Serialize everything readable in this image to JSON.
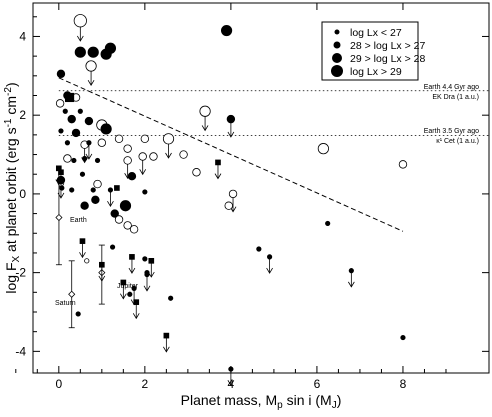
{
  "chart_data": {
    "type": "scatter",
    "title": "",
    "xlabel": "Planet mass, M_p sin i (M_J)",
    "ylabel": "log F_X at planet orbit (erg s^-1 cm^-2)",
    "xlim": [
      -0.6,
      10.0
    ],
    "ylim": [
      -4.55,
      4.85
    ],
    "x_ticks": [
      0,
      2,
      4,
      6,
      8
    ],
    "y_ticks": [
      -4,
      -2,
      0,
      2,
      4
    ],
    "grid": false,
    "legend_position": "top-right",
    "legend": [
      {
        "label": "log Lx < 27",
        "size": 1
      },
      {
        "label": "28 > log Lx > 27",
        "size": 2
      },
      {
        "label": "29 > log Lx > 28",
        "size": 3
      },
      {
        "label": "log Lx > 29",
        "size": 4
      }
    ],
    "reference_lines": [
      {
        "y": 2.62,
        "label1": "Earth 4.4 Gyr ago",
        "label2": "EK Dra (1 a.u.)"
      },
      {
        "y": 1.48,
        "label1": "Earth 3.5 Gyr ago",
        "label2": "κ¹ Cet (1 a.u.)"
      }
    ],
    "trend_line": {
      "x": [
        0.0,
        8.0
      ],
      "y": [
        2.95,
        -0.95
      ]
    },
    "solar_system": [
      {
        "name": "Earth",
        "x": 0.003,
        "y": -0.6,
        "err_low": -1.8,
        "err_high": 0.35
      },
      {
        "name": "Jupiter",
        "x": 1.0,
        "y": -2.0,
        "err_low": -2.8,
        "err_high": -1.3
      },
      {
        "name": "Saturn",
        "x": 0.3,
        "y": -2.55,
        "err_low": -3.4,
        "err_high": -1.7
      }
    ],
    "points": [
      {
        "x": 0.5,
        "y": 4.4,
        "size": 4,
        "filled": false,
        "limit": true
      },
      {
        "x": 0.5,
        "y": 3.6,
        "size": 3,
        "filled": true,
        "limit": false
      },
      {
        "x": 0.8,
        "y": 3.6,
        "size": 3,
        "filled": true,
        "limit": false
      },
      {
        "x": 1.1,
        "y": 3.55,
        "size": 3,
        "filled": true,
        "limit": false
      },
      {
        "x": 1.2,
        "y": 3.7,
        "size": 3,
        "filled": true,
        "limit": false
      },
      {
        "x": 0.75,
        "y": 3.25,
        "size": 3,
        "filled": false,
        "limit": true
      },
      {
        "x": 3.9,
        "y": 4.15,
        "size": 3,
        "filled": true,
        "limit": false
      },
      {
        "x": 0.05,
        "y": 3.05,
        "size": 2,
        "filled": true,
        "limit": false
      },
      {
        "x": 0.2,
        "y": 2.5,
        "size": 2,
        "filled": true,
        "limit": false
      },
      {
        "x": 0.03,
        "y": 2.3,
        "size": 2,
        "filled": false,
        "limit": false
      },
      {
        "x": 0.4,
        "y": 2.45,
        "size": 2,
        "filled": false,
        "limit": false
      },
      {
        "x": 0.15,
        "y": 2.1,
        "size": 1,
        "filled": true,
        "limit": false
      },
      {
        "x": 0.3,
        "y": 1.9,
        "size": 2,
        "filled": true,
        "limit": false
      },
      {
        "x": 0.5,
        "y": 2.1,
        "size": 1,
        "filled": true,
        "limit": false
      },
      {
        "x": 0.05,
        "y": 1.6,
        "size": 1,
        "filled": true,
        "limit": false
      },
      {
        "x": 0.2,
        "y": 1.3,
        "size": 1,
        "filled": true,
        "limit": false
      },
      {
        "x": 0.7,
        "y": 1.85,
        "size": 2,
        "filled": true,
        "limit": false
      },
      {
        "x": 1.0,
        "y": 1.75,
        "size": 3,
        "filled": false,
        "limit": false
      },
      {
        "x": 1.1,
        "y": 1.65,
        "size": 3,
        "filled": true,
        "limit": false
      },
      {
        "x": 0.4,
        "y": 1.55,
        "size": 2,
        "filled": true,
        "limit": false
      },
      {
        "x": 0.6,
        "y": 1.25,
        "size": 2,
        "filled": false,
        "limit": true
      },
      {
        "x": 0.7,
        "y": 1.3,
        "size": 1,
        "filled": true,
        "limit": true
      },
      {
        "x": 1.0,
        "y": 1.3,
        "size": 2,
        "filled": false,
        "limit": false
      },
      {
        "x": 1.4,
        "y": 1.4,
        "size": 2,
        "filled": false,
        "limit": false
      },
      {
        "x": 1.6,
        "y": 1.15,
        "size": 2,
        "filled": false,
        "limit": false
      },
      {
        "x": 2.0,
        "y": 1.4,
        "size": 2,
        "filled": false,
        "limit": false
      },
      {
        "x": 0.2,
        "y": 0.9,
        "size": 2,
        "filled": false,
        "limit": false
      },
      {
        "x": 0.35,
        "y": 0.85,
        "size": 1,
        "filled": true,
        "limit": false
      },
      {
        "x": 0.6,
        "y": 0.9,
        "size": 1,
        "filled": true,
        "limit": false
      },
      {
        "x": 0.9,
        "y": 0.85,
        "size": 1,
        "filled": true,
        "limit": false
      },
      {
        "x": 0.55,
        "y": 0.5,
        "size": 1,
        "filled": true,
        "limit": false
      },
      {
        "x": 1.6,
        "y": 0.85,
        "size": 2,
        "filled": false,
        "limit": true
      },
      {
        "x": 1.95,
        "y": 0.95,
        "size": 2,
        "filled": false,
        "limit": true
      },
      {
        "x": 2.2,
        "y": 0.95,
        "size": 2,
        "filled": false,
        "limit": false
      },
      {
        "x": 2.55,
        "y": 1.4,
        "size": 3,
        "filled": false,
        "limit": true
      },
      {
        "x": 2.9,
        "y": 1.0,
        "size": 2,
        "filled": false,
        "limit": false
      },
      {
        "x": 3.2,
        "y": 0.55,
        "size": 2,
        "filled": false,
        "limit": false
      },
      {
        "x": 3.4,
        "y": 2.1,
        "size": 3,
        "filled": false,
        "limit": true
      },
      {
        "x": 4.0,
        "y": 1.9,
        "size": 2,
        "filled": true,
        "limit": true
      },
      {
        "x": 3.7,
        "y": 0.8,
        "size": 1,
        "filled": true,
        "limit": true,
        "marker": "square"
      },
      {
        "x": 4.05,
        "y": 0.0,
        "size": 2,
        "filled": false,
        "limit": true
      },
      {
        "x": 3.95,
        "y": -0.3,
        "size": 2,
        "filled": false,
        "limit": false
      },
      {
        "x": 6.15,
        "y": 1.15,
        "size": 3,
        "filled": false,
        "limit": false
      },
      {
        "x": 8.0,
        "y": 0.75,
        "size": 2,
        "filled": false,
        "limit": false
      },
      {
        "x": 0.05,
        "y": 0.35,
        "size": 2,
        "filled": true,
        "limit": true
      },
      {
        "x": 0.07,
        "y": 0.15,
        "size": 1,
        "filled": true,
        "limit": false
      },
      {
        "x": 0.0,
        "y": 0.65,
        "size": 1,
        "filled": true,
        "limit": true,
        "marker": "square"
      },
      {
        "x": 0.05,
        "y": 0.55,
        "size": 1,
        "filled": true,
        "limit": true,
        "marker": "square"
      },
      {
        "x": 0.25,
        "y": 2.45,
        "size": 2,
        "filled": true,
        "limit": false,
        "marker": "square"
      },
      {
        "x": 0.3,
        "y": 0.1,
        "size": 1,
        "filled": true,
        "limit": false
      },
      {
        "x": 0.8,
        "y": 0.1,
        "size": 1,
        "filled": true,
        "limit": false
      },
      {
        "x": 0.6,
        "y": -0.3,
        "size": 2,
        "filled": true,
        "limit": false
      },
      {
        "x": 0.85,
        "y": -0.15,
        "size": 2,
        "filled": true,
        "limit": false
      },
      {
        "x": 0.9,
        "y": 0.25,
        "size": 2,
        "filled": false,
        "limit": false
      },
      {
        "x": 1.2,
        "y": 0.1,
        "size": 1,
        "filled": true,
        "limit": true
      },
      {
        "x": 1.35,
        "y": 0.15,
        "size": 1,
        "filled": true,
        "limit": false,
        "marker": "square"
      },
      {
        "x": 1.3,
        "y": -0.5,
        "size": 2,
        "filled": true,
        "limit": false
      },
      {
        "x": 1.55,
        "y": -0.3,
        "size": 3,
        "filled": true,
        "limit": false
      },
      {
        "x": 1.4,
        "y": -0.65,
        "size": 2,
        "filled": false,
        "limit": false
      },
      {
        "x": 1.6,
        "y": -0.8,
        "size": 2,
        "filled": false,
        "limit": false
      },
      {
        "x": 1.75,
        "y": -0.9,
        "size": 2,
        "filled": false,
        "limit": false
      },
      {
        "x": 1.7,
        "y": 0.45,
        "size": 2,
        "filled": true,
        "limit": false
      },
      {
        "x": 2.0,
        "y": 0.05,
        "size": 1,
        "filled": true,
        "limit": false
      },
      {
        "x": 0.55,
        "y": -1.2,
        "size": 1,
        "filled": true,
        "limit": true,
        "marker": "square"
      },
      {
        "x": 0.65,
        "y": -1.7,
        "size": 1,
        "filled": false,
        "limit": false
      },
      {
        "x": 1.0,
        "y": -1.8,
        "size": 1,
        "filled": true,
        "limit": true,
        "marker": "square"
      },
      {
        "x": 1.25,
        "y": -1.35,
        "size": 1,
        "filled": true,
        "limit": false
      },
      {
        "x": 1.7,
        "y": -1.6,
        "size": 1,
        "filled": true,
        "limit": true,
        "marker": "square"
      },
      {
        "x": 2.0,
        "y": -1.65,
        "size": 1,
        "filled": true,
        "limit": false
      },
      {
        "x": 2.05,
        "y": -2.0,
        "size": 1,
        "filled": true,
        "limit": false
      },
      {
        "x": 2.05,
        "y": -2.05,
        "size": 1,
        "filled": true,
        "limit": true
      },
      {
        "x": 2.15,
        "y": -1.7,
        "size": 1,
        "filled": true,
        "limit": true,
        "marker": "square"
      },
      {
        "x": 1.5,
        "y": -2.25,
        "size": 1,
        "filled": true,
        "limit": true,
        "marker": "square"
      },
      {
        "x": 1.65,
        "y": -2.55,
        "size": 1,
        "filled": true,
        "limit": false
      },
      {
        "x": 1.8,
        "y": -2.75,
        "size": 1,
        "filled": true,
        "limit": true,
        "marker": "square"
      },
      {
        "x": 1.75,
        "y": -2.4,
        "size": 1,
        "filled": true,
        "limit": true
      },
      {
        "x": 2.6,
        "y": -2.65,
        "size": 1,
        "filled": true,
        "limit": false
      },
      {
        "x": 0.45,
        "y": -3.05,
        "size": 1,
        "filled": true,
        "limit": false
      },
      {
        "x": 2.5,
        "y": -3.6,
        "size": 1,
        "filled": true,
        "limit": true,
        "marker": "square"
      },
      {
        "x": 4.0,
        "y": -4.45,
        "size": 1,
        "filled": true,
        "limit": true
      },
      {
        "x": 4.65,
        "y": -1.4,
        "size": 1,
        "filled": true,
        "limit": false
      },
      {
        "x": 4.9,
        "y": -1.6,
        "size": 1,
        "filled": true,
        "limit": true
      },
      {
        "x": 6.25,
        "y": -0.75,
        "size": 1,
        "filled": true,
        "limit": false
      },
      {
        "x": 6.8,
        "y": -1.95,
        "size": 1,
        "filled": true,
        "limit": true
      },
      {
        "x": 8.0,
        "y": -3.65,
        "size": 1,
        "filled": true,
        "limit": false
      }
    ]
  }
}
